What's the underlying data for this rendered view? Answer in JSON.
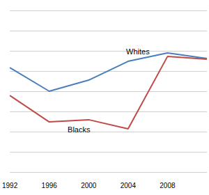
{
  "chart_data": {
    "type": "line",
    "categories": [
      "1992",
      "1996",
      "2000",
      "2004",
      "2008",
      null
    ],
    "series": [
      {
        "name": "Whites",
        "color": "#4a7ebb",
        "values": [
          51.7,
          40,
          45.5,
          54.8,
          59,
          56.2
        ]
      },
      {
        "name": "Blacks",
        "color": "#be4b48",
        "values": [
          37.9,
          24.8,
          25.9,
          21.4,
          57.2,
          55.9
        ]
      }
    ],
    "ylim": [
      0,
      80
    ],
    "yticks": [
      0,
      10,
      20,
      30,
      40,
      50,
      60,
      70,
      80
    ],
    "grid": true,
    "tick_labels": "x"
  }
}
